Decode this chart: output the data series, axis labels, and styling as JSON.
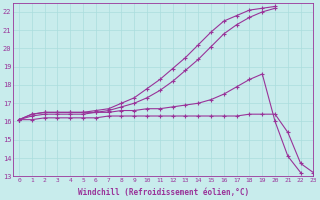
{
  "xlabel": "Windchill (Refroidissement éolien,°C)",
  "xlim": [
    -0.5,
    23
  ],
  "ylim": [
    13,
    22.5
  ],
  "yticks": [
    13,
    14,
    15,
    16,
    17,
    18,
    19,
    20,
    21,
    22
  ],
  "xticks": [
    0,
    1,
    2,
    3,
    4,
    5,
    6,
    7,
    8,
    9,
    10,
    11,
    12,
    13,
    14,
    15,
    16,
    17,
    18,
    19,
    20,
    21,
    22,
    23
  ],
  "background_color": "#c8ecec",
  "grid_color": "#aadddd",
  "line_color": "#993399",
  "lines": [
    {
      "x": [
        0,
        1,
        2,
        3,
        4,
        5,
        6,
        7,
        8,
        9,
        10,
        11,
        12,
        13,
        14,
        15,
        16,
        17,
        18,
        19,
        20
      ],
      "y": [
        16.1,
        16.4,
        16.5,
        16.5,
        16.5,
        16.5,
        16.6,
        16.7,
        17.0,
        17.3,
        17.8,
        18.3,
        18.9,
        19.5,
        20.2,
        20.9,
        21.5,
        21.8,
        22.1,
        22.2,
        22.3
      ]
    },
    {
      "x": [
        0,
        1,
        2,
        3,
        4,
        5,
        6,
        7,
        8,
        9,
        10,
        11,
        12,
        13,
        14,
        15,
        16,
        17,
        18,
        19,
        20
      ],
      "y": [
        16.1,
        16.4,
        16.5,
        16.5,
        16.5,
        16.5,
        16.5,
        16.6,
        16.8,
        17.0,
        17.3,
        17.7,
        18.2,
        18.8,
        19.4,
        20.1,
        20.8,
        21.3,
        21.7,
        22.0,
        22.2
      ]
    },
    {
      "x": [
        0,
        1,
        2,
        3,
        4,
        5,
        6,
        7,
        8,
        9,
        10,
        11,
        12,
        13,
        14,
        15,
        16,
        17,
        18,
        19,
        20,
        21,
        22
      ],
      "y": [
        16.1,
        16.3,
        16.4,
        16.4,
        16.4,
        16.4,
        16.5,
        16.5,
        16.6,
        16.6,
        16.7,
        16.7,
        16.8,
        16.9,
        17.0,
        17.2,
        17.5,
        17.9,
        18.3,
        18.6,
        16.0,
        14.1,
        13.2
      ]
    },
    {
      "x": [
        0,
        1,
        2,
        3,
        4,
        5,
        6,
        7,
        8,
        9,
        10,
        11,
        12,
        13,
        14,
        15,
        16,
        17,
        18,
        19,
        20,
        21,
        22,
        23
      ],
      "y": [
        16.1,
        16.1,
        16.2,
        16.2,
        16.2,
        16.2,
        16.2,
        16.3,
        16.3,
        16.3,
        16.3,
        16.3,
        16.3,
        16.3,
        16.3,
        16.3,
        16.3,
        16.3,
        16.4,
        16.4,
        16.4,
        15.4,
        13.7,
        13.2
      ]
    }
  ]
}
